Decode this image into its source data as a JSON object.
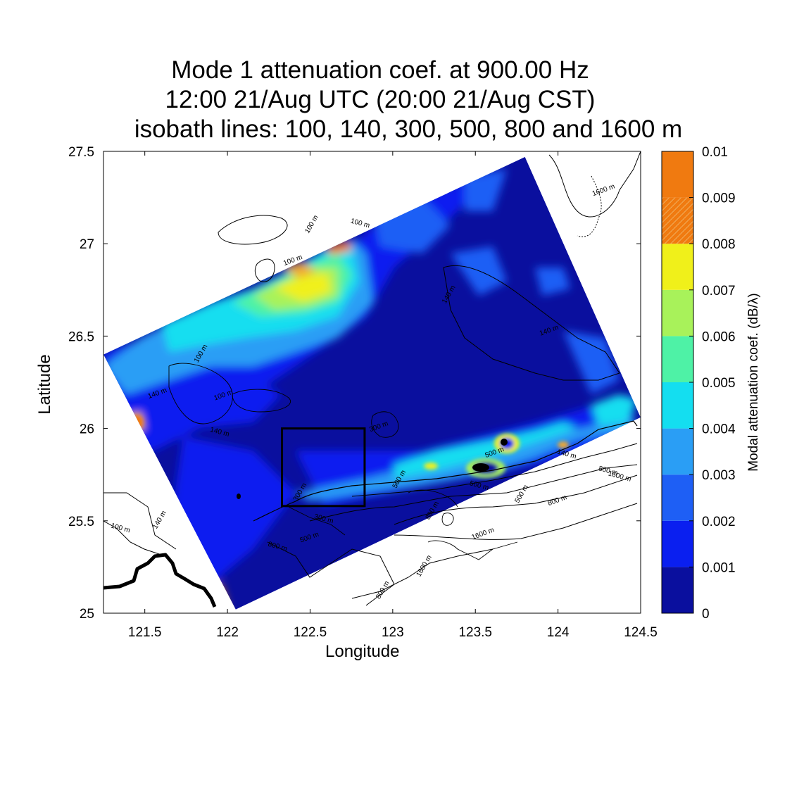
{
  "chart_data": {
    "type": "heatmap",
    "title_lines": [
      "Mode 1 attenuation coef. at 900.00 Hz",
      "12:00 21/Aug UTC (20:00 21/Aug CST)",
      "isobath lines: 100, 140, 300, 500, 800 and 1600 m"
    ],
    "xlabel": "Longitude",
    "ylabel": "Latitude",
    "xlim": [
      121.25,
      124.5
    ],
    "ylim": [
      25,
      27.5
    ],
    "x_ticks": [
      "121.5",
      "122",
      "122.5",
      "123",
      "123.5",
      "124",
      "124.5"
    ],
    "x_tick_values": [
      121.5,
      122,
      122.5,
      123,
      123.5,
      124,
      124.5
    ],
    "y_ticks": [
      "25",
      "25.5",
      "26",
      "26.5",
      "27",
      "27.5"
    ],
    "y_tick_values": [
      25,
      25.5,
      26,
      26.5,
      27,
      27.5
    ],
    "colorbar": {
      "label": "Modal attenuation coef. (dB/λ)",
      "ticks": [
        "0",
        "0.001",
        "0.002",
        "0.003",
        "0.004",
        "0.005",
        "0.006",
        "0.007",
        "0.008",
        "0.009",
        "0.01"
      ],
      "levels": [
        {
          "from": 0.0,
          "to": 0.001,
          "color": "#0a0f9e"
        },
        {
          "from": 0.001,
          "to": 0.002,
          "color": "#0a1ff0"
        },
        {
          "from": 0.002,
          "to": 0.003,
          "color": "#1e5ff5"
        },
        {
          "from": 0.003,
          "to": 0.004,
          "color": "#2a9ef5"
        },
        {
          "from": 0.004,
          "to": 0.005,
          "color": "#14def0"
        },
        {
          "from": 0.005,
          "to": 0.006,
          "color": "#4ef2a6"
        },
        {
          "from": 0.006,
          "to": 0.007,
          "color": "#a8f25a"
        },
        {
          "from": 0.007,
          "to": 0.008,
          "color": "#f0f01a"
        },
        {
          "from": 0.008,
          "to": 0.009,
          "color": "#f0a830"
        },
        {
          "from": 0.009,
          "to": 0.01,
          "color": "#f07a10"
        }
      ]
    },
    "domain_corners": [
      [
        121.25,
        26.4
      ],
      [
        123.8,
        27.47
      ],
      [
        124.5,
        26.06
      ],
      [
        122.05,
        25.02
      ]
    ],
    "box": {
      "lon": [
        122.33,
        122.83
      ],
      "lat": [
        25.58,
        26.0
      ]
    },
    "isobath_labels": [
      {
        "text": "100 m",
        "lon": 122.52,
        "lat": 27.1
      },
      {
        "text": "100 m",
        "lon": 122.4,
        "lat": 26.9
      },
      {
        "text": "100 m",
        "lon": 122.8,
        "lat": 27.1
      },
      {
        "text": "100 m",
        "lon": 121.85,
        "lat": 26.4
      },
      {
        "text": "100 m",
        "lon": 121.98,
        "lat": 26.17
      },
      {
        "text": "100 m",
        "lon": 121.35,
        "lat": 25.45
      },
      {
        "text": "140 m",
        "lon": 123.35,
        "lat": 26.72
      },
      {
        "text": "140 m",
        "lon": 123.95,
        "lat": 26.52
      },
      {
        "text": "140 m",
        "lon": 124.05,
        "lat": 25.85
      },
      {
        "text": "140 m",
        "lon": 121.6,
        "lat": 25.5
      },
      {
        "text": "140 m",
        "lon": 121.58,
        "lat": 26.18
      },
      {
        "text": "140 m",
        "lon": 121.95,
        "lat": 25.97
      },
      {
        "text": "300 m",
        "lon": 122.45,
        "lat": 25.65
      },
      {
        "text": "300 m",
        "lon": 122.92,
        "lat": 26.0
      },
      {
        "text": "300 m",
        "lon": 122.58,
        "lat": 25.5
      },
      {
        "text": "500 m",
        "lon": 123.05,
        "lat": 25.72
      },
      {
        "text": "500 m",
        "lon": 123.62,
        "lat": 25.86
      },
      {
        "text": "500 m",
        "lon": 123.52,
        "lat": 25.68
      },
      {
        "text": "500 m",
        "lon": 123.79,
        "lat": 25.64
      },
      {
        "text": "500 m",
        "lon": 122.5,
        "lat": 25.4
      },
      {
        "text": "800 m",
        "lon": 122.3,
        "lat": 25.35
      },
      {
        "text": "800 m",
        "lon": 123.25,
        "lat": 25.55
      },
      {
        "text": "800 m",
        "lon": 124.0,
        "lat": 25.6
      },
      {
        "text": "800 m",
        "lon": 124.3,
        "lat": 25.76
      },
      {
        "text": "800 m",
        "lon": 122.95,
        "lat": 25.12
      },
      {
        "text": "1600 m",
        "lon": 123.55,
        "lat": 25.42
      },
      {
        "text": "1600 m",
        "lon": 124.37,
        "lat": 25.73
      },
      {
        "text": "1600 m",
        "lon": 123.2,
        "lat": 25.25
      },
      {
        "text": "1600 m",
        "lon": 124.28,
        "lat": 27.28
      }
    ]
  }
}
